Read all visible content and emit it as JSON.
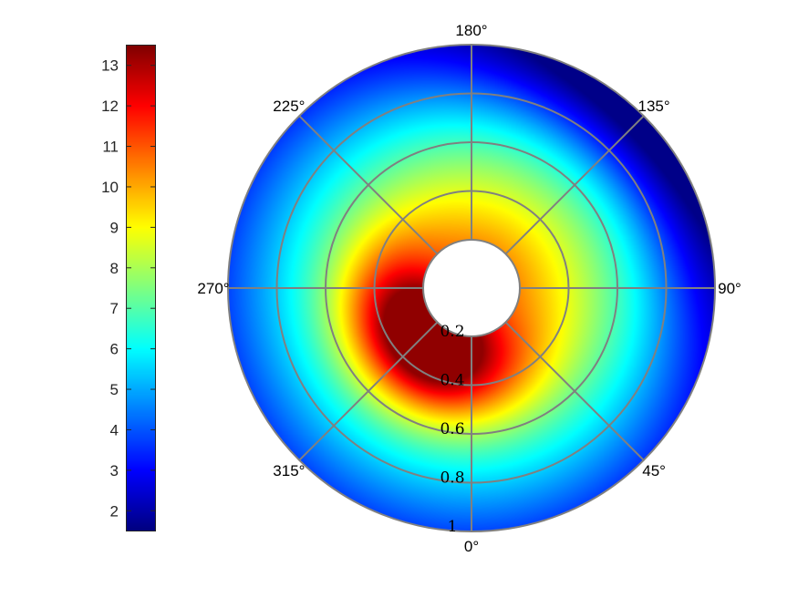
{
  "chart_data": {
    "type": "heatmap",
    "projection": "polar",
    "title": "",
    "colormap": "jet",
    "colorbar": {
      "placement": "left",
      "clim": [
        1.5,
        13.5
      ],
      "ticks": [
        2,
        3,
        4,
        5,
        6,
        7,
        8,
        9,
        10,
        11,
        12,
        13
      ],
      "tick_labels": [
        "2",
        "3",
        "4",
        "5",
        "6",
        "7",
        "8",
        "9",
        "10",
        "11",
        "12",
        "13"
      ]
    },
    "angular_axis": {
      "zero_location": "bottom",
      "direction": "counterclockwise",
      "ticks_deg": [
        0,
        45,
        90,
        135,
        180,
        225,
        270,
        315
      ],
      "tick_labels": [
        "0°",
        "45°",
        "90°",
        "135°",
        "180°",
        "225°",
        "270°",
        "315°"
      ]
    },
    "radial_axis": {
      "range": [
        0.2,
        1.0
      ],
      "ticks": [
        0.2,
        0.4,
        0.6,
        0.8,
        1.0
      ],
      "tick_labels": [
        "0.2",
        "0.4",
        "0.6",
        "0.8",
        "1"
      ],
      "grid": true
    },
    "field": {
      "max_value": 13.3,
      "max_at_r": 0.3,
      "max_at_theta_deg": 320,
      "min_value": 1.6,
      "min_at_r": 1.0,
      "min_at_theta_deg": 135,
      "samples": [
        {
          "r": 0.3,
          "theta_deg": 320,
          "value": 13.3
        },
        {
          "r": 0.3,
          "theta_deg": 0,
          "value": 12.2
        },
        {
          "r": 0.3,
          "theta_deg": 270,
          "value": 12.4
        },
        {
          "r": 0.3,
          "theta_deg": 90,
          "value": 9.0
        },
        {
          "r": 0.3,
          "theta_deg": 180,
          "value": 8.5
        },
        {
          "r": 0.5,
          "theta_deg": 300,
          "value": 10.5
        },
        {
          "r": 0.5,
          "theta_deg": 180,
          "value": 7.0
        },
        {
          "r": 0.5,
          "theta_deg": 90,
          "value": 6.5
        },
        {
          "r": 0.8,
          "theta_deg": 315,
          "value": 8.0
        },
        {
          "r": 0.8,
          "theta_deg": 180,
          "value": 5.0
        },
        {
          "r": 1.0,
          "theta_deg": 0,
          "value": 6.5
        },
        {
          "r": 1.0,
          "theta_deg": 90,
          "value": 3.0
        },
        {
          "r": 1.0,
          "theta_deg": 135,
          "value": 1.6
        },
        {
          "r": 1.0,
          "theta_deg": 180,
          "value": 3.0
        },
        {
          "r": 1.0,
          "theta_deg": 270,
          "value": 6.0
        }
      ]
    }
  }
}
